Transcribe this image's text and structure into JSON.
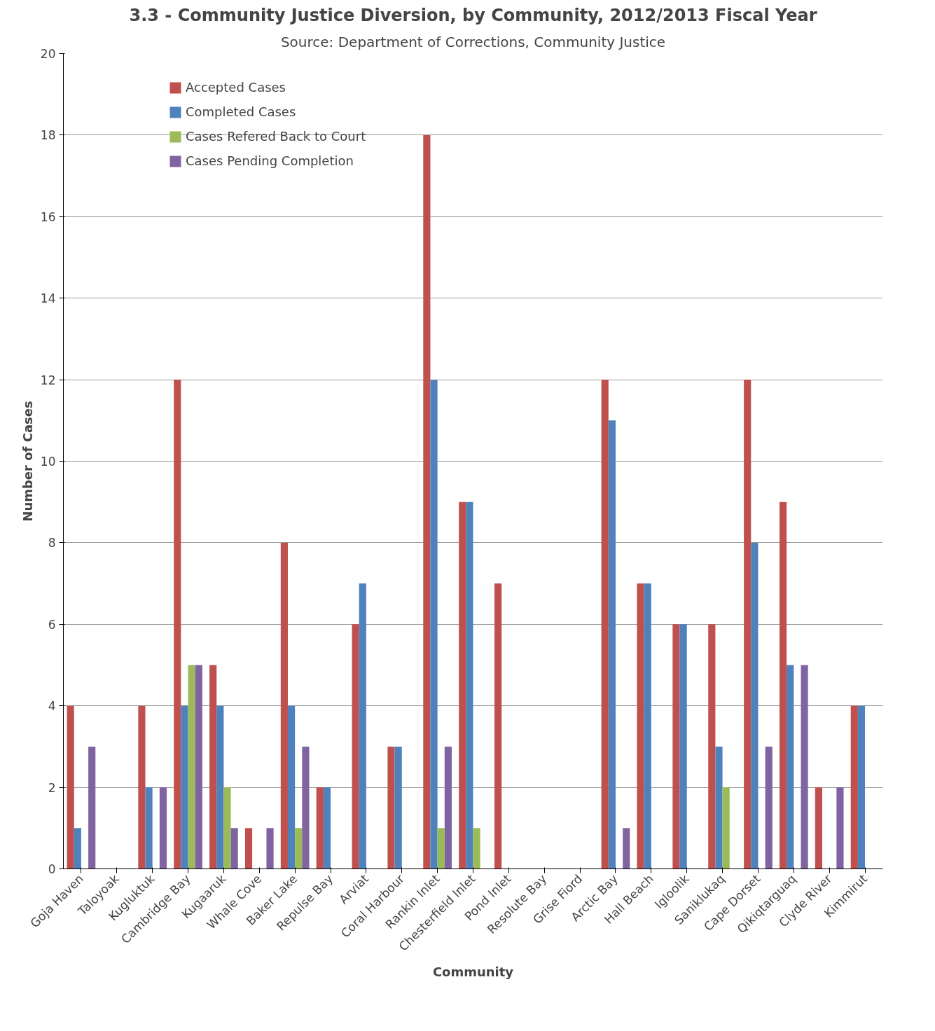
{
  "chart_data": {
    "type": "bar",
    "title": "3.3 - Community Justice Diversion, by Community, 2012/2013 Fiscal Year",
    "subtitle": "Source: Department of Corrections, Community Justice",
    "xlabel": "Community",
    "ylabel": "Number of Cases",
    "categories": [
      "Goja Haven",
      "Taloyoak",
      "Kugluktuk",
      "Cambridge Bay",
      "Kugaaruk",
      "Whale Cove",
      "Baker Lake",
      "Repulse Bay",
      "Arviat",
      "Coral Harbour",
      "Rankin Inlet",
      "Chesterfield Inlet",
      "Pond Inlet",
      "Resolute Bay",
      "Grise Fiord",
      "Arctic Bay",
      "Hall Beach",
      "Igloolik",
      "Saniklukaq",
      "Cape Dorset",
      "Qikiqtarguaq",
      "Clyde River",
      "Kimmirut"
    ],
    "series": [
      {
        "name": "Accepted Cases",
        "color": "#c0504d",
        "values": [
          4,
          0,
          4,
          12,
          5,
          1,
          8,
          2,
          6,
          3,
          18,
          9,
          7,
          0,
          0,
          12,
          7,
          6,
          6,
          12,
          9,
          2,
          4
        ]
      },
      {
        "name": "Completed Cases",
        "color": "#4f81bd",
        "values": [
          1,
          0,
          2,
          4,
          4,
          0,
          4,
          2,
          7,
          3,
          12,
          9,
          0,
          0,
          0,
          11,
          7,
          6,
          3,
          8,
          5,
          0,
          4
        ]
      },
      {
        "name": "Cases Refered Back to Court",
        "color": "#9bbb59",
        "values": [
          0,
          0,
          0,
          5,
          2,
          0,
          1,
          0,
          0,
          0,
          1,
          1,
          0,
          0,
          0,
          0,
          0,
          0,
          2,
          0,
          0,
          0,
          0
        ]
      },
      {
        "name": "Cases Pending Completion",
        "color": "#8064a2",
        "values": [
          3,
          0,
          2,
          5,
          1,
          1,
          3,
          0,
          0,
          0,
          3,
          0,
          0,
          0,
          0,
          1,
          0,
          0,
          0,
          3,
          5,
          2,
          0
        ]
      }
    ],
    "ylim": [
      0,
      20
    ],
    "yticks": [
      0,
      2,
      4,
      6,
      8,
      10,
      12,
      14,
      16,
      18,
      20
    ],
    "grid": "y",
    "legend": "top left"
  }
}
